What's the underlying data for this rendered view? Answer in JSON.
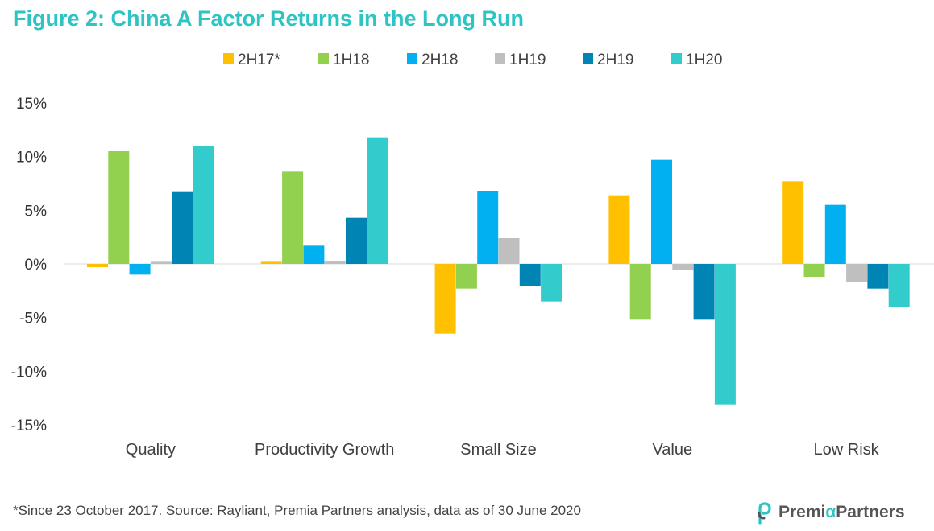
{
  "title": "Figure 2: China A Factor Returns in the Long Run",
  "footnote": "*Since 23 October 2017. Source: Rayliant, Premia Partners analysis, data as of 30 June 2020",
  "logo": {
    "part1": "Premi",
    "alpha": "α",
    "part2": "Partners"
  },
  "chart_data": {
    "type": "bar",
    "categories": [
      "Quality",
      "Productivity Growth",
      "Small Size",
      "Value",
      "Low Risk"
    ],
    "series": [
      {
        "name": "2H17*",
        "color": "#ffc000",
        "values": [
          -0.3,
          0.2,
          -6.5,
          6.4,
          7.7
        ]
      },
      {
        "name": "1H18",
        "color": "#92d050",
        "values": [
          10.5,
          8.6,
          -2.3,
          -5.2,
          -1.2
        ]
      },
      {
        "name": "2H18",
        "color": "#00b0f0",
        "values": [
          -1.0,
          1.7,
          6.8,
          9.7,
          5.5
        ]
      },
      {
        "name": "1H19",
        "color": "#bfbfbf",
        "values": [
          0.2,
          0.3,
          2.4,
          -0.6,
          -1.7
        ]
      },
      {
        "name": "2H19",
        "color": "#0084b4",
        "values": [
          6.7,
          4.3,
          -2.1,
          -5.2,
          -2.3
        ]
      },
      {
        "name": "1H20",
        "color": "#33cccc",
        "values": [
          11.0,
          11.8,
          -3.5,
          -13.1,
          -4.0
        ]
      }
    ],
    "yticks": [
      "15%",
      "10%",
      "5%",
      "0%",
      "-5%",
      "-10%",
      "-15%"
    ],
    "ytick_values": [
      15,
      10,
      5,
      0,
      -5,
      -10,
      -15
    ],
    "ylim": [
      -15,
      15
    ],
    "xlabel": "",
    "ylabel": "",
    "grid": false,
    "legend_position": "top"
  }
}
